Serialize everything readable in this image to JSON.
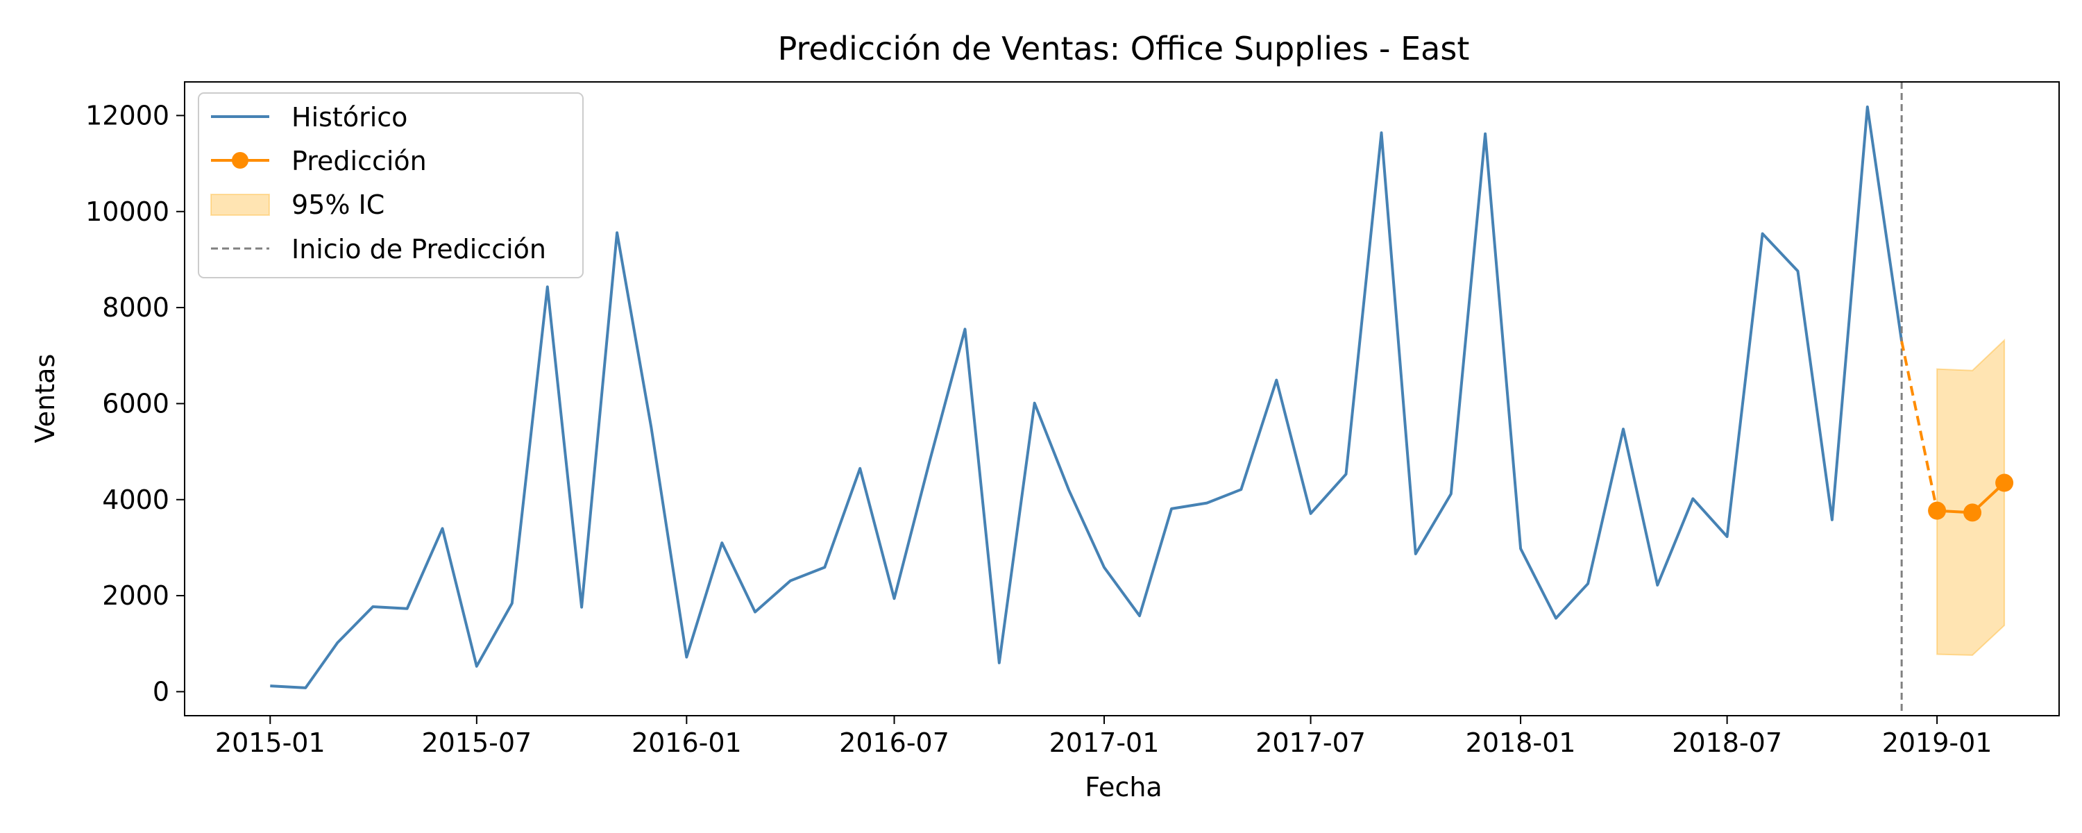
{
  "chart_data": {
    "type": "line",
    "title": "Predicción de Ventas: Office Supplies - East",
    "xlabel": "Fecha",
    "ylabel": "Ventas",
    "xlim": [
      "2014-10-18",
      "2019-04-18"
    ],
    "ylim": [
      -500,
      12700
    ],
    "x_ticks": [
      "2015-01",
      "2015-07",
      "2016-01",
      "2016-07",
      "2017-01",
      "2017-07",
      "2018-01",
      "2018-07",
      "2019-01"
    ],
    "y_ticks": [
      0,
      2000,
      4000,
      6000,
      8000,
      10000,
      12000
    ],
    "grid": false,
    "legend_position": "top-left",
    "colors": {
      "historico": "#4682b4",
      "prediccion": "#ff8c00",
      "ci_fill": "#ffa500",
      "vline": "#808080"
    },
    "series": [
      {
        "name": "Histórico",
        "style": "solid-line",
        "x": [
          "2015-01",
          "2015-02",
          "2015-03",
          "2015-04",
          "2015-05",
          "2015-06",
          "2015-07",
          "2015-08",
          "2015-09",
          "2015-10",
          "2015-11",
          "2015-12",
          "2016-01",
          "2016-02",
          "2016-03",
          "2016-04",
          "2016-05",
          "2016-06",
          "2016-07",
          "2016-08",
          "2016-09",
          "2016-10",
          "2016-11",
          "2016-12",
          "2017-01",
          "2017-02",
          "2017-03",
          "2017-04",
          "2017-05",
          "2017-06",
          "2017-07",
          "2017-08",
          "2017-09",
          "2017-10",
          "2017-11",
          "2017-12",
          "2018-01",
          "2018-02",
          "2018-03",
          "2018-04",
          "2018-05",
          "2018-06",
          "2018-07",
          "2018-08",
          "2018-09",
          "2018-10",
          "2018-11",
          "2018-12"
        ],
        "values": [
          120,
          80,
          1020,
          1770,
          1730,
          3400,
          530,
          1840,
          8430,
          1760,
          9560,
          5500,
          720,
          3100,
          1660,
          2310,
          2590,
          4650,
          1940,
          4800,
          7550,
          600,
          6010,
          4200,
          2590,
          1580,
          3810,
          3930,
          4210,
          6490,
          3710,
          4530,
          11640,
          2870,
          4120,
          11620,
          2980,
          1530,
          2250,
          5470,
          2220,
          4020,
          3230,
          9540,
          8760,
          3580,
          12180,
          7300
        ]
      },
      {
        "name": "Predicción",
        "style": "line-with-markers",
        "x": [
          "2019-01",
          "2019-02",
          "2019-03"
        ],
        "values": [
          3770,
          3730,
          4350
        ],
        "connector_from": {
          "x": "2018-12",
          "value": 7300
        }
      }
    ],
    "confidence_interval": {
      "name": "95% IC",
      "x": [
        "2019-01",
        "2019-02",
        "2019-03"
      ],
      "lower": [
        780,
        760,
        1380
      ],
      "upper": [
        6720,
        6690,
        7320
      ]
    },
    "vertical_line": {
      "name": "Inicio de Predicción",
      "x": "2018-12"
    }
  }
}
